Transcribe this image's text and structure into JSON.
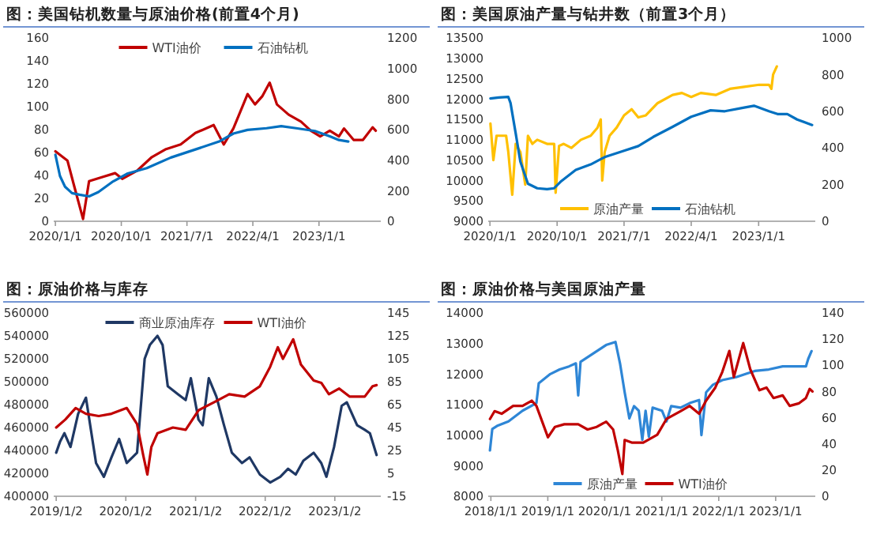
{
  "chart_data": [
    {
      "type": "line",
      "title": "图：美国钻机数量与原油价格(前置4个月)",
      "legend": "top",
      "xlim": [
        "2019-12-25",
        "2023-09-15"
      ],
      "ylim": [
        0,
        160
      ],
      "yticks": [
        0,
        20,
        40,
        60,
        80,
        100,
        120,
        140,
        160
      ],
      "y2lim": [
        0,
        1200
      ],
      "y2ticks": [
        0,
        200,
        400,
        600,
        800,
        1000,
        1200
      ],
      "xticks": [
        {
          "value": "2020-01-01",
          "label": "2020/1/1"
        },
        {
          "value": "2020-10-01",
          "label": "2020/10/1"
        },
        {
          "value": "2021-07-01",
          "label": "2021/7/1"
        },
        {
          "value": "2022-04-01",
          "label": "2022/4/1"
        },
        {
          "value": "2023-01-01",
          "label": "2023/1/1"
        }
      ],
      "series": [
        {
          "name": "WTI油价",
          "color": "#c00000",
          "x": [
            "2020-01-01",
            "2020-02-20",
            "2020-03-20",
            "2020-04-25",
            "2020-05-20",
            "2020-07-20",
            "2020-09-05",
            "2020-10-05",
            "2020-12-05",
            "2021-02-05",
            "2021-04-05",
            "2021-06-05",
            "2021-08-05",
            "2021-10-20",
            "2021-12-01",
            "2022-01-10",
            "2022-03-10",
            "2022-04-10",
            "2022-05-10",
            "2022-06-10",
            "2022-07-10",
            "2022-08-28",
            "2022-10-18",
            "2022-11-28",
            "2023-01-06",
            "2023-02-15",
            "2023-03-25",
            "2023-04-15",
            "2023-05-25",
            "2023-07-03",
            "2023-08-12",
            "2023-08-25"
          ],
          "values": [
            61,
            53,
            30,
            2,
            35,
            39,
            42,
            37,
            44,
            56,
            63,
            67,
            77,
            84,
            67,
            81,
            111,
            102,
            109,
            121,
            102,
            93,
            87,
            79,
            74,
            79,
            74,
            81,
            71,
            71,
            82,
            79
          ]
        },
        {
          "name": "石油钻机",
          "color": "#0070c0",
          "axis": "y2",
          "x": [
            "2020-01-01",
            "2020-01-20",
            "2020-02-10",
            "2020-03-10",
            "2020-04-10",
            "2020-05-20",
            "2020-06-28",
            "2020-08-28",
            "2020-10-28",
            "2021-01-15",
            "2021-04-25",
            "2021-08-05",
            "2021-11-12",
            "2022-01-10",
            "2022-03-10",
            "2022-05-28",
            "2022-07-28",
            "2022-09-28",
            "2022-12-15",
            "2023-02-15",
            "2023-03-25",
            "2023-05-03"
          ],
          "values": [
            435,
            296,
            226,
            184,
            174,
            163,
            191,
            261,
            313,
            348,
            417,
            470,
            522,
            574,
            598,
            609,
            623,
            609,
            591,
            556,
            532,
            522
          ]
        }
      ]
    },
    {
      "type": "line",
      "title": "图：美国原油产量与钻井数（前置3个月）",
      "legend": "bottom",
      "xlim": [
        "2019-12-25",
        "2023-08-20"
      ],
      "ylim": [
        9000,
        13500
      ],
      "yticks": [
        9000,
        9500,
        10000,
        10500,
        11000,
        11500,
        12000,
        12500,
        13000,
        13500
      ],
      "y2lim": [
        0,
        1000
      ],
      "y2ticks": [
        0,
        200,
        400,
        600,
        800,
        1000
      ],
      "xticks": [
        {
          "value": "2020-01-01",
          "label": "2020/1/1"
        },
        {
          "value": "2020-10-01",
          "label": "2020/10/1"
        },
        {
          "value": "2021-07-01",
          "label": "2021/7/1"
        },
        {
          "value": "2022-04-01",
          "label": "2022/4/1"
        },
        {
          "value": "2023-01-01",
          "label": "2023/1/1"
        }
      ],
      "series": [
        {
          "name": "原油产量",
          "color": "#ffc000",
          "x": [
            "2020-01-03",
            "2020-01-15",
            "2020-01-28",
            "2020-02-17",
            "2020-03-07",
            "2020-03-16",
            "2020-04-01",
            "2020-04-15",
            "2020-05-04",
            "2020-05-24",
            "2020-06-04",
            "2020-06-22",
            "2020-07-12",
            "2020-08-21",
            "2020-09-19",
            "2020-09-25",
            "2020-10-09",
            "2020-10-28",
            "2020-11-28",
            "2021-01-06",
            "2021-02-15",
            "2021-03-15",
            "2021-03-28",
            "2021-04-03",
            "2021-04-13",
            "2021-05-03",
            "2021-06-01",
            "2021-07-01",
            "2021-08-01",
            "2021-08-28",
            "2021-09-28",
            "2021-11-15",
            "2022-01-15",
            "2022-02-22",
            "2022-04-01",
            "2022-05-10",
            "2022-07-10",
            "2022-09-06",
            "2022-11-03",
            "2023-01-03",
            "2023-02-12",
            "2023-02-22",
            "2023-03-01",
            "2023-03-16"
          ],
          "values": [
            11400,
            10500,
            11100,
            11100,
            11100,
            10700,
            9650,
            10900,
            10700,
            9900,
            11100,
            10900,
            11000,
            10900,
            10900,
            9700,
            10850,
            10900,
            10800,
            11000,
            11100,
            11300,
            11500,
            10000,
            10700,
            11100,
            11300,
            11600,
            11750,
            11550,
            11600,
            11900,
            12100,
            12150,
            12050,
            12150,
            12100,
            12250,
            12300,
            12350,
            12350,
            12250,
            12600,
            12800
          ]
        },
        {
          "name": "石油钻机",
          "color": "#0070c0",
          "axis": "y2",
          "x": [
            "2020-01-03",
            "2020-02-06",
            "2020-03-16",
            "2020-03-25",
            "2020-04-15",
            "2020-05-04",
            "2020-06-04",
            "2020-07-12",
            "2020-08-21",
            "2020-09-19",
            "2020-10-19",
            "2020-12-16",
            "2021-02-15",
            "2021-04-13",
            "2021-07-01",
            "2021-08-28",
            "2021-10-28",
            "2022-01-15",
            "2022-04-01",
            "2022-06-19",
            "2022-08-16",
            "2022-11-03",
            "2022-12-13",
            "2023-02-12",
            "2023-03-19",
            "2023-04-28",
            "2023-06-07",
            "2023-08-07"
          ],
          "values": [
            670,
            675,
            678,
            645,
            480,
            325,
            205,
            180,
            175,
            180,
            220,
            280,
            310,
            350,
            385,
            410,
            460,
            515,
            570,
            605,
            600,
            620,
            630,
            600,
            585,
            585,
            555,
            525
          ]
        }
      ]
    },
    {
      "type": "line",
      "title": "图：原油价格与库存",
      "legend": "top",
      "xlim": [
        "2018-12-20",
        "2023-08-31"
      ],
      "ylim": [
        400000,
        560000
      ],
      "yticks": [
        400000,
        420000,
        440000,
        460000,
        480000,
        500000,
        520000,
        540000,
        560000
      ],
      "y2lim": [
        -15,
        145
      ],
      "y2ticks": [
        -15,
        5,
        25,
        45,
        65,
        85,
        105,
        125,
        145
      ],
      "xticks": [
        {
          "value": "2019-01-02",
          "label": "2019/1/2"
        },
        {
          "value": "2020-01-02",
          "label": "2020/1/2"
        },
        {
          "value": "2021-01-02",
          "label": "2021/1/2"
        },
        {
          "value": "2022-01-02",
          "label": "2022/1/2"
        },
        {
          "value": "2023-01-02",
          "label": "2023/1/2"
        }
      ],
      "series": [
        {
          "name": "商业原油库存",
          "color": "#1f3864",
          "x": [
            "2019-01-02",
            "2019-01-23",
            "2019-02-14",
            "2019-03-18",
            "2019-04-27",
            "2019-06-07",
            "2019-07-03",
            "2019-07-30",
            "2019-09-09",
            "2019-10-19",
            "2019-11-28",
            "2020-01-07",
            "2020-03-01",
            "2020-04-10",
            "2020-05-07",
            "2020-06-16",
            "2020-07-13",
            "2020-08-09",
            "2020-10-02",
            "2020-11-11",
            "2020-12-08",
            "2021-01-17",
            "2021-02-08",
            "2021-03-12",
            "2021-04-21",
            "2021-05-31",
            "2021-07-11",
            "2021-09-02",
            "2021-10-12",
            "2021-12-05",
            "2022-01-28",
            "2022-03-22",
            "2022-05-02",
            "2022-06-11",
            "2022-07-21",
            "2022-09-13",
            "2022-10-23",
            "2022-11-19",
            "2022-12-29",
            "2023-02-07",
            "2023-03-06",
            "2023-04-29",
            "2023-06-08",
            "2023-07-05",
            "2023-08-09"
          ],
          "values": [
            438000,
            448000,
            455000,
            443000,
            472000,
            486000,
            458000,
            429000,
            417000,
            434000,
            450000,
            429000,
            438000,
            520000,
            532000,
            540000,
            532000,
            496000,
            489000,
            484000,
            503000,
            467000,
            462000,
            503000,
            487000,
            462000,
            438000,
            429000,
            434000,
            419000,
            412000,
            417000,
            424000,
            419000,
            431000,
            438000,
            429000,
            417000,
            443000,
            479000,
            482000,
            462000,
            458000,
            455000,
            436000
          ]
        },
        {
          "name": "WTI油价",
          "color": "#c00000",
          "axis": "y2",
          "x": [
            "2019-01-02",
            "2019-02-19",
            "2019-04-14",
            "2019-06-07",
            "2019-08-13",
            "2019-10-19",
            "2020-01-07",
            "2020-03-01",
            "2020-04-02",
            "2020-04-24",
            "2020-05-15",
            "2020-06-16",
            "2020-09-05",
            "2020-11-11",
            "2021-01-17",
            "2021-04-08",
            "2021-06-27",
            "2021-09-16",
            "2021-12-05",
            "2022-01-28",
            "2022-03-09",
            "2022-04-05",
            "2022-05-29",
            "2022-07-08",
            "2022-09-13",
            "2022-10-23",
            "2022-12-02",
            "2023-01-25",
            "2023-03-20",
            "2023-06-08",
            "2023-07-19",
            "2023-08-09"
          ],
          "values": [
            45,
            52,
            62,
            57,
            55,
            57,
            62,
            48,
            21,
            4,
            28,
            40,
            45,
            43,
            60,
            67,
            74,
            72,
            81,
            98,
            115,
            105,
            122,
            100,
            86,
            84,
            74,
            79,
            72,
            72,
            81,
            82
          ]
        }
      ]
    },
    {
      "type": "line",
      "title": "图：原油价格与美国原油产量",
      "legend": "bottom",
      "xlim": [
        "2017-12-15",
        "2023-09-12"
      ],
      "ylim": [
        8000,
        14000
      ],
      "yticks": [
        8000,
        9000,
        10000,
        11000,
        12000,
        13000,
        14000
      ],
      "y2lim": [
        0,
        140
      ],
      "y2ticks": [
        0,
        20,
        40,
        60,
        80,
        100,
        120,
        140
      ],
      "xticks": [
        {
          "value": "2018-01-01",
          "label": "2018/1/1"
        },
        {
          "value": "2019-01-01",
          "label": "2019/1/1"
        },
        {
          "value": "2020-01-01",
          "label": "2020/1/1"
        },
        {
          "value": "2021-01-01",
          "label": "2021/1/1"
        },
        {
          "value": "2022-01-01",
          "label": "2022/1/1"
        },
        {
          "value": "2023-01-01",
          "label": "2023/1/1"
        }
      ],
      "series": [
        {
          "name": "原油产量",
          "color": "#2e86d6",
          "x": [
            "2017-12-26",
            "2018-01-10",
            "2018-02-09",
            "2018-04-24",
            "2018-07-23",
            "2018-10-20",
            "2018-11-04",
            "2019-01-17",
            "2019-03-18",
            "2019-05-17",
            "2019-06-30",
            "2019-07-15",
            "2019-07-30",
            "2019-11-11",
            "2020-01-10",
            "2020-03-10",
            "2020-04-08",
            "2020-05-08",
            "2020-06-07",
            "2020-07-07",
            "2020-08-06",
            "2020-08-29",
            "2020-09-19",
            "2020-10-10",
            "2020-11-03",
            "2021-01-02",
            "2021-01-31",
            "2021-03-02",
            "2021-05-01",
            "2021-06-29",
            "2021-08-28",
            "2021-09-12",
            "2021-10-12",
            "2021-11-25",
            "2022-01-24",
            "2022-04-23",
            "2022-06-22",
            "2022-08-20",
            "2022-11-18",
            "2023-02-15",
            "2023-04-16",
            "2023-07-14",
            "2023-07-29",
            "2023-08-19"
          ],
          "values": [
            9500,
            10200,
            10300,
            10450,
            10800,
            11050,
            11700,
            12000,
            12150,
            12250,
            12350,
            11300,
            12400,
            12750,
            12950,
            13050,
            12350,
            11400,
            10550,
            10950,
            10800,
            9850,
            10800,
            9950,
            10900,
            10800,
            10450,
            10950,
            10900,
            11050,
            11150,
            10000,
            11400,
            11650,
            11800,
            11900,
            12000,
            12100,
            12150,
            12250,
            12250,
            12250,
            12500,
            12750
          ]
        },
        {
          "name": "WTI油价",
          "color": "#c00000",
          "axis": "y2",
          "x": [
            "2017-12-26",
            "2018-01-25",
            "2018-03-11",
            "2018-05-24",
            "2018-07-23",
            "2018-09-20",
            "2018-10-20",
            "2019-01-02",
            "2019-02-16",
            "2019-04-17",
            "2019-07-15",
            "2019-09-13",
            "2019-11-11",
            "2020-01-10",
            "2020-02-24",
            "2020-03-25",
            "2020-04-23",
            "2020-05-08",
            "2020-06-22",
            "2020-09-04",
            "2020-12-03",
            "2021-01-31",
            "2021-05-01",
            "2021-06-29",
            "2021-08-28",
            "2021-10-12",
            "2021-12-10",
            "2022-01-24",
            "2022-03-10",
            "2022-04-08",
            "2022-06-07",
            "2022-07-22",
            "2022-09-19",
            "2022-11-03",
            "2022-12-18",
            "2023-02-15",
            "2023-04-01",
            "2023-05-31",
            "2023-07-14",
            "2023-08-07",
            "2023-08-25"
          ],
          "values": [
            59,
            65,
            63,
            69,
            69,
            73,
            69,
            45,
            53,
            55,
            55,
            51,
            53,
            57,
            51,
            35,
            17,
            43,
            41,
            41,
            47,
            59,
            65,
            69,
            63,
            73,
            83,
            95,
            111,
            91,
            117,
            97,
            81,
            83,
            75,
            77,
            69,
            71,
            75,
            82,
            80
          ]
        }
      ]
    }
  ]
}
